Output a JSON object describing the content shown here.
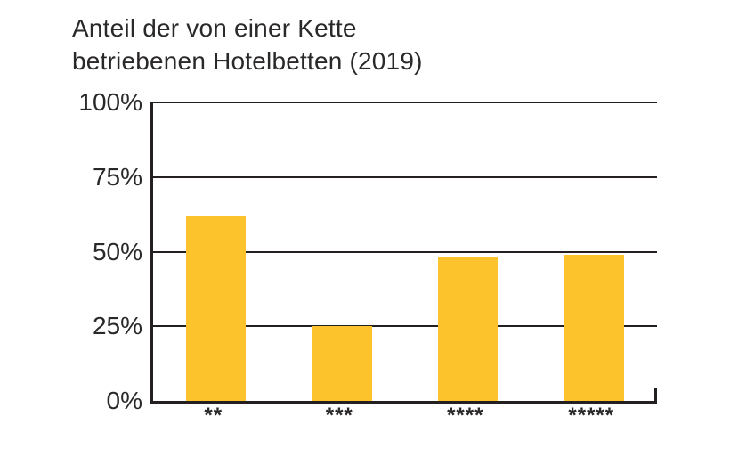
{
  "chart_data": {
    "type": "bar",
    "title": "Anteil der von einer Kette betriebenen Hotelbetten (2019)",
    "title_lines": [
      "Anteil der von einer Kette",
      "betriebenen Hotelbetten (2019)"
    ],
    "categories": [
      "**",
      "***",
      "****",
      "*****"
    ],
    "values": [
      62,
      25,
      48,
      49
    ],
    "unit": "%",
    "xlabel": "",
    "ylabel": "",
    "ylim": [
      0,
      100
    ],
    "yticks": [
      0,
      25,
      50,
      75,
      100
    ],
    "ytick_labels": [
      "0%",
      "25%",
      "50%",
      "75%",
      "100%"
    ],
    "grid": "horizontal",
    "legend": false,
    "colors": {
      "bar": "#fcc32c",
      "axis": "#242021",
      "text": "#2b2829",
      "background": "#ffffff"
    }
  }
}
